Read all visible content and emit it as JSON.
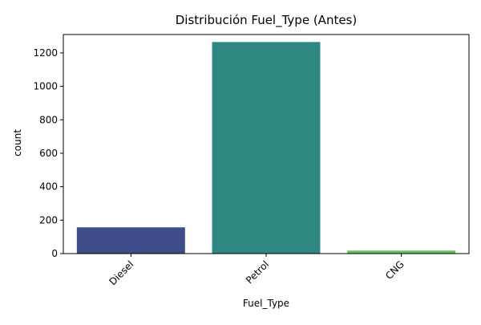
{
  "chart_data": {
    "type": "bar",
    "title": "Distribución Fuel_Type (Antes)",
    "xlabel": "Fuel_Type",
    "ylabel": "count",
    "categories": [
      "Diesel",
      "Petrol",
      "CNG"
    ],
    "values": [
      157,
      1265,
      18
    ],
    "colors": [
      "#3e4c8a",
      "#2e8781",
      "#63c161"
    ],
    "ylim": [
      0,
      1310
    ],
    "yticks": [
      0,
      200,
      400,
      600,
      800,
      1000,
      1200
    ],
    "grid": false,
    "legend": "none"
  }
}
